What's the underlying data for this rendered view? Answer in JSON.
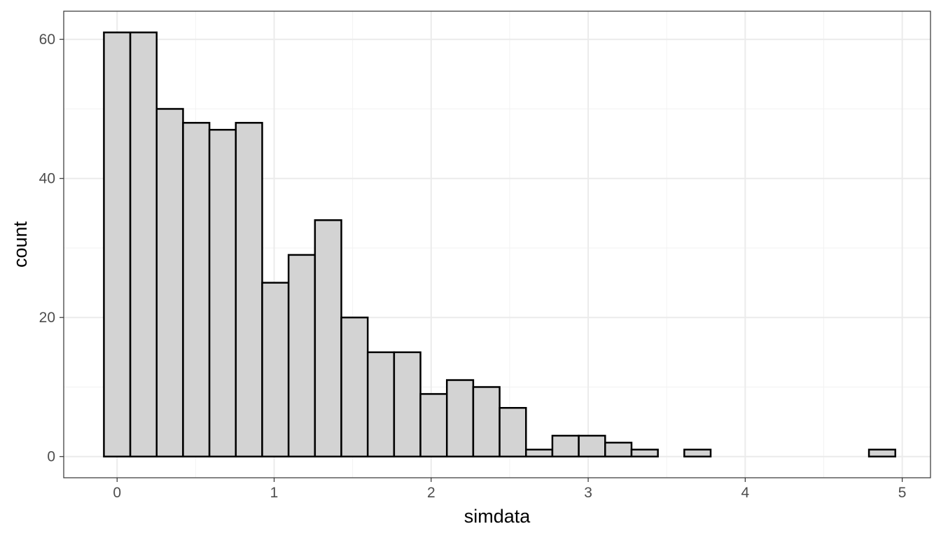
{
  "chart_data": {
    "type": "bar",
    "title": "",
    "xlabel": "simdata",
    "ylabel": "count",
    "bin_width": 0.168,
    "bin_start": -0.084,
    "values": [
      61,
      61,
      50,
      48,
      47,
      48,
      25,
      29,
      34,
      20,
      15,
      15,
      9,
      11,
      10,
      7,
      1,
      3,
      3,
      2,
      1,
      0,
      1,
      0,
      0,
      0,
      0,
      0,
      0,
      1
    ],
    "xlim": [
      -0.34,
      5.18
    ],
    "ylim": [
      -3.05,
      64.05
    ],
    "x_ticks": [
      0,
      1,
      2,
      3,
      4,
      5
    ],
    "x_tick_labels": [
      "0",
      "1",
      "2",
      "3",
      "4",
      "5"
    ],
    "y_ticks": [
      0,
      20,
      40,
      60
    ],
    "y_tick_labels": [
      "0",
      "20",
      "40",
      "60"
    ],
    "grid": true,
    "theme": "bw",
    "bar_fill": "#d3d3d3",
    "bar_outline": "#000000"
  }
}
